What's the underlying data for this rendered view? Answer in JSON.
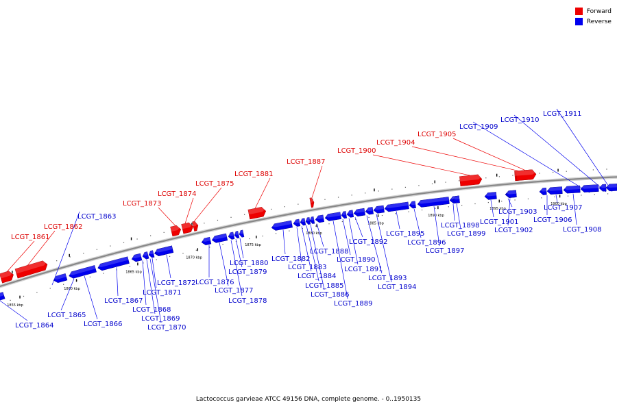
{
  "caption": "Lactococcus garvieae ATCC 49156 DNA, complete genome. - 0..1950135",
  "legend": [
    {
      "label": "Forward",
      "color": "#ee0000"
    },
    {
      "label": "Reverse",
      "color": "#0000ee"
    }
  ],
  "colors": {
    "forward": "#ee0000",
    "reverse": "#0000ee",
    "backbone": "#888888"
  },
  "axis": {
    "unit": "kbp",
    "ticks": [
      1855,
      1860,
      1865,
      1870,
      1875,
      1880,
      1885,
      1890,
      1895,
      1900
    ]
  },
  "genes": [
    {
      "name": "LCGT_1861",
      "strand": "forward"
    },
    {
      "name": "LCGT_1862",
      "strand": "forward"
    },
    {
      "name": "LCGT_1863",
      "strand": "reverse"
    },
    {
      "name": "LCGT_1864",
      "strand": "reverse"
    },
    {
      "name": "LCGT_1865",
      "strand": "reverse"
    },
    {
      "name": "LCGT_1866",
      "strand": "reverse"
    },
    {
      "name": "LCGT_1867",
      "strand": "reverse"
    },
    {
      "name": "LCGT_1868",
      "strand": "reverse"
    },
    {
      "name": "LCGT_1869",
      "strand": "reverse"
    },
    {
      "name": "LCGT_1870",
      "strand": "reverse"
    },
    {
      "name": "LCGT_1871",
      "strand": "reverse"
    },
    {
      "name": "LCGT_1872",
      "strand": "reverse"
    },
    {
      "name": "LCGT_1873",
      "strand": "forward"
    },
    {
      "name": "LCGT_1874",
      "strand": "forward"
    },
    {
      "name": "LCGT_1875",
      "strand": "forward"
    },
    {
      "name": "LCGT_1876",
      "strand": "reverse"
    },
    {
      "name": "LCGT_1877",
      "strand": "reverse"
    },
    {
      "name": "LCGT_1878",
      "strand": "reverse"
    },
    {
      "name": "LCGT_1879",
      "strand": "reverse"
    },
    {
      "name": "LCGT_1880",
      "strand": "reverse"
    },
    {
      "name": "LCGT_1881",
      "strand": "forward"
    },
    {
      "name": "LCGT_1882",
      "strand": "reverse"
    },
    {
      "name": "LCGT_1883",
      "strand": "reverse"
    },
    {
      "name": "LCGT_1884",
      "strand": "reverse"
    },
    {
      "name": "LCGT_1885",
      "strand": "reverse"
    },
    {
      "name": "LCGT_1886",
      "strand": "reverse"
    },
    {
      "name": "LCGT_1887",
      "strand": "forward"
    },
    {
      "name": "LCGT_1888",
      "strand": "reverse"
    },
    {
      "name": "LCGT_1889",
      "strand": "reverse"
    },
    {
      "name": "LCGT_1890",
      "strand": "reverse"
    },
    {
      "name": "LCGT_1891",
      "strand": "reverse"
    },
    {
      "name": "LCGT_1892",
      "strand": "reverse"
    },
    {
      "name": "LCGT_1893",
      "strand": "reverse"
    },
    {
      "name": "LCGT_1894",
      "strand": "reverse"
    },
    {
      "name": "LCGT_1895",
      "strand": "reverse"
    },
    {
      "name": "LCGT_1896",
      "strand": "reverse"
    },
    {
      "name": "LCGT_1897",
      "strand": "reverse"
    },
    {
      "name": "LCGT_1898",
      "strand": "reverse"
    },
    {
      "name": "LCGT_1899",
      "strand": "reverse"
    },
    {
      "name": "LCGT_1900",
      "strand": "forward"
    },
    {
      "name": "LCGT_1901",
      "strand": "reverse"
    },
    {
      "name": "LCGT_1902",
      "strand": "reverse"
    },
    {
      "name": "LCGT_1903",
      "strand": "reverse"
    },
    {
      "name": "LCGT_1904",
      "strand": "forward"
    },
    {
      "name": "LCGT_1905",
      "strand": "forward"
    },
    {
      "name": "LCGT_1906",
      "strand": "reverse"
    },
    {
      "name": "LCGT_1907",
      "strand": "reverse"
    },
    {
      "name": "LCGT_1908",
      "strand": "reverse"
    },
    {
      "name": "LCGT_1909",
      "strand": "reverse"
    },
    {
      "name": "LCGT_1910",
      "strand": "reverse"
    },
    {
      "name": "LCGT_1911",
      "strand": "reverse"
    }
  ]
}
